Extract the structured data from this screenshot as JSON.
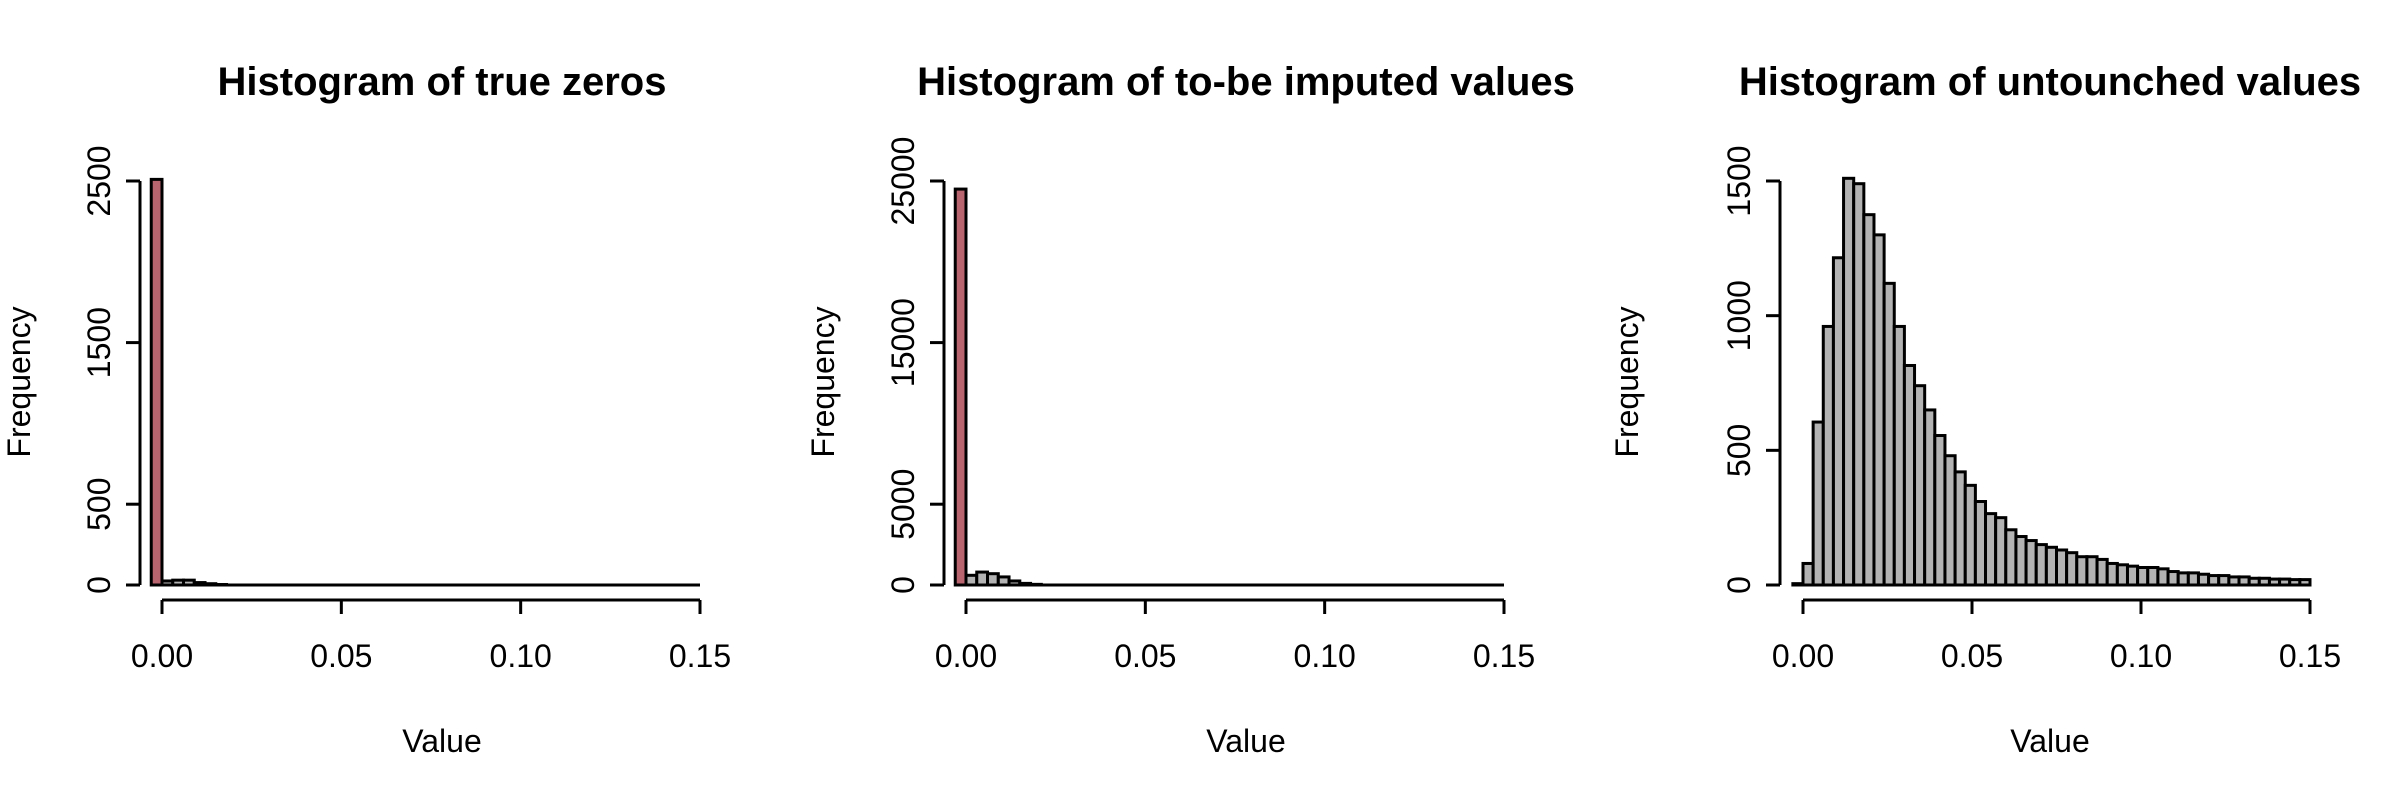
{
  "chart_data": [
    {
      "type": "bar",
      "title": "Histogram of true zeros",
      "xlabel": "Value",
      "ylabel": "Frequency",
      "xlim": [
        -0.003,
        0.15
      ],
      "ylim": [
        0,
        2500
      ],
      "xticks": [
        "0.00",
        "0.05",
        "0.10",
        "0.15"
      ],
      "yticks": [
        "0",
        "500",
        "1500",
        "2500"
      ],
      "bin_width": 0.003,
      "bins": [
        {
          "x0": -0.003,
          "x1": 0.0,
          "count": 2510,
          "color": "#b8656f"
        },
        {
          "x0": 0.0,
          "x1": 0.003,
          "count": 25,
          "color": "#b3b3b3"
        },
        {
          "x0": 0.003,
          "x1": 0.006,
          "count": 30,
          "color": "#b3b3b3"
        },
        {
          "x0": 0.006,
          "x1": 0.009,
          "count": 30,
          "color": "#b3b3b3"
        },
        {
          "x0": 0.009,
          "x1": 0.012,
          "count": 15,
          "color": "#b3b3b3"
        },
        {
          "x0": 0.012,
          "x1": 0.015,
          "count": 8,
          "color": "#b3b3b3"
        },
        {
          "x0": 0.015,
          "x1": 0.018,
          "count": 3,
          "color": "#b3b3b3"
        }
      ]
    },
    {
      "type": "bar",
      "title": "Histogram of to-be imputed values",
      "xlabel": "Value",
      "ylabel": "Frequency",
      "xlim": [
        -0.003,
        0.15
      ],
      "ylim": [
        0,
        25000
      ],
      "xticks": [
        "0.00",
        "0.05",
        "0.10",
        "0.15"
      ],
      "yticks": [
        "0",
        "5000",
        "15000",
        "25000"
      ],
      "bin_width": 0.003,
      "bins": [
        {
          "x0": -0.003,
          "x1": 0.0,
          "count": 24500,
          "color": "#b8656f"
        },
        {
          "x0": 0.0,
          "x1": 0.003,
          "count": 600,
          "color": "#b3b3b3"
        },
        {
          "x0": 0.003,
          "x1": 0.006,
          "count": 800,
          "color": "#b3b3b3"
        },
        {
          "x0": 0.006,
          "x1": 0.009,
          "count": 700,
          "color": "#b3b3b3"
        },
        {
          "x0": 0.009,
          "x1": 0.012,
          "count": 500,
          "color": "#b3b3b3"
        },
        {
          "x0": 0.012,
          "x1": 0.015,
          "count": 250,
          "color": "#b3b3b3"
        },
        {
          "x0": 0.015,
          "x1": 0.018,
          "count": 100,
          "color": "#b3b3b3"
        },
        {
          "x0": 0.018,
          "x1": 0.021,
          "count": 40,
          "color": "#b3b3b3"
        }
      ]
    },
    {
      "type": "bar",
      "title": "Histogram of untounched values",
      "xlabel": "Value",
      "ylabel": "Frequency",
      "xlim": [
        0.0,
        0.15
      ],
      "ylim": [
        0,
        1500
      ],
      "xticks": [
        "0.00",
        "0.05",
        "0.10",
        "0.15"
      ],
      "yticks": [
        "0",
        "500",
        "1000",
        "1500"
      ],
      "bin_width": 0.003,
      "bin_start": -0.003,
      "bar_color": "#b3b3b3",
      "counts": [
        5,
        80,
        605,
        960,
        1215,
        1510,
        1490,
        1375,
        1300,
        1120,
        960,
        815,
        740,
        650,
        555,
        480,
        420,
        370,
        310,
        265,
        250,
        205,
        180,
        165,
        150,
        140,
        130,
        120,
        105,
        105,
        95,
        80,
        75,
        70,
        65,
        65,
        60,
        50,
        45,
        45,
        40,
        35,
        35,
        30,
        30,
        25,
        25,
        22,
        22,
        20,
        20
      ]
    }
  ]
}
